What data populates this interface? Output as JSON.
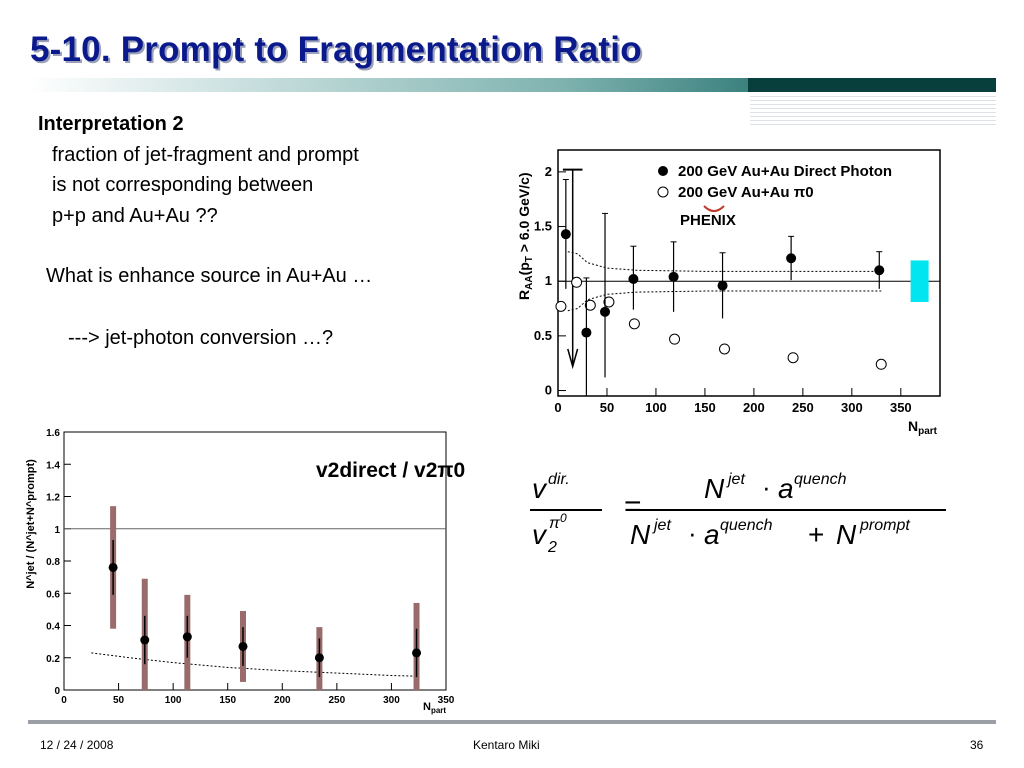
{
  "slide": {
    "title": "5-10. Prompt to Fragmentation Ratio",
    "heading": "Interpretation 2",
    "lines": [
      "fraction of jet-fragment and prompt",
      "is not corresponding between",
      "p+p and Au+Au ??",
      "What is enhance source in Au+Au …",
      "---> jet-photon conversion …?"
    ],
    "footer": {
      "date": "12 / 24 / 2008",
      "author": "Kentaro Miki",
      "page": "36"
    },
    "equation": {
      "lhs_num": "v",
      "lhs_num_sup": "dir.",
      "lhs_den": "v",
      "lhs_den_sub": "2",
      "lhs_den_sup": "π",
      "lhs_den_supsup": "0",
      "rhs_num": "N",
      "rhs_sup_jet": "jet",
      "dot": "·",
      "a": "a",
      "sup_quench": "quench",
      "plus": "+",
      "sup_prompt": "prompt"
    }
  },
  "chart_data": [
    {
      "type": "scatter",
      "title": "",
      "xlabel": "N",
      "xlabel_sub": "part",
      "ylabel": "R",
      "ylabel_sub": "AA",
      "ylabel_rest": "(p",
      "ylabel_sub2": "T",
      "ylabel_tail": " > 6.0 GeV/c)",
      "xlim": [
        0,
        390
      ],
      "ylim": [
        -0.05,
        2.2
      ],
      "xticks": [
        0,
        50,
        100,
        150,
        200,
        250,
        300,
        350
      ],
      "yticks": [
        0,
        0.5,
        1,
        1.5,
        2
      ],
      "logo": "PHENIX",
      "legend_position": "top-right",
      "series": [
        {
          "name": "200 GeV Au+Au Direct Photon",
          "marker": "filled-circle",
          "color": "#000000",
          "x": [
            8,
            29,
            48,
            77,
            118,
            168,
            238,
            328
          ],
          "y": [
            1.43,
            0.53,
            0.72,
            1.02,
            1.04,
            0.96,
            1.21,
            1.1
          ],
          "err_up": [
            0.5,
            0.5,
            0.9,
            0.3,
            0.32,
            0.3,
            0.2,
            0.17
          ],
          "err_down": [
            0.5,
            0.75,
            0.6,
            0.28,
            0.32,
            0.3,
            0.2,
            0.17
          ]
        },
        {
          "name": "200 GeV Au+Au π0",
          "marker": "open-circle",
          "color": "#000000",
          "x": [
            3,
            19,
            33,
            52,
            78,
            119,
            170,
            240,
            330
          ],
          "y": [
            0.77,
            0.99,
            0.78,
            0.81,
            0.61,
            0.47,
            0.38,
            0.3,
            0.24
          ]
        }
      ],
      "reference_line": 1.0,
      "band_upper": [
        [
          10,
          1.27
        ],
        [
          20,
          1.25
        ],
        [
          30,
          1.17
        ],
        [
          50,
          1.12
        ],
        [
          80,
          1.1
        ],
        [
          150,
          1.09
        ],
        [
          330,
          1.09
        ]
      ],
      "band_lower": [
        [
          10,
          0.73
        ],
        [
          20,
          0.75
        ],
        [
          30,
          0.83
        ],
        [
          50,
          0.88
        ],
        [
          80,
          0.9
        ],
        [
          150,
          0.91
        ],
        [
          330,
          0.91
        ]
      ],
      "sys_box": {
        "x": 360,
        "ylow": 0.81,
        "yhigh": 1.19,
        "color": "#00e5f0"
      }
    },
    {
      "type": "scatter",
      "title": "",
      "label": "v2direct / v2π0",
      "xlabel": "N",
      "xlabel_sub": "part",
      "ylabel": "N^jet / (N^jet+N^prompt)",
      "xlim": [
        0,
        350
      ],
      "ylim": [
        0,
        1.6
      ],
      "xticks": [
        0,
        50,
        100,
        150,
        200,
        250,
        300,
        350
      ],
      "yticks": [
        0,
        0.2,
        0.4,
        0.6,
        0.8,
        1,
        1.2,
        1.4,
        1.6
      ],
      "reference_line": 1.0,
      "series": [
        {
          "name": "",
          "marker": "filled-circle",
          "color": "#000000",
          "x": [
            45,
            74,
            113,
            164,
            234,
            323
          ],
          "y": [
            0.76,
            0.31,
            0.33,
            0.27,
            0.2,
            0.23
          ],
          "stat_up": [
            0.17,
            0.15,
            0.13,
            0.12,
            0.12,
            0.15
          ],
          "stat_down": [
            0.17,
            0.15,
            0.13,
            0.12,
            0.12,
            0.15
          ],
          "sys_up": [
            1.14,
            0.69,
            0.59,
            0.49,
            0.39,
            0.54
          ],
          "sys_down": [
            0.38,
            0.0,
            0.0,
            0.05,
            0.0,
            0.0
          ],
          "sys_color": "#9a6b6b"
        }
      ],
      "curve": [
        [
          25,
          0.23
        ],
        [
          60,
          0.2
        ],
        [
          100,
          0.17
        ],
        [
          150,
          0.14
        ],
        [
          200,
          0.12
        ],
        [
          250,
          0.105
        ],
        [
          300,
          0.09
        ],
        [
          325,
          0.085
        ]
      ]
    }
  ]
}
